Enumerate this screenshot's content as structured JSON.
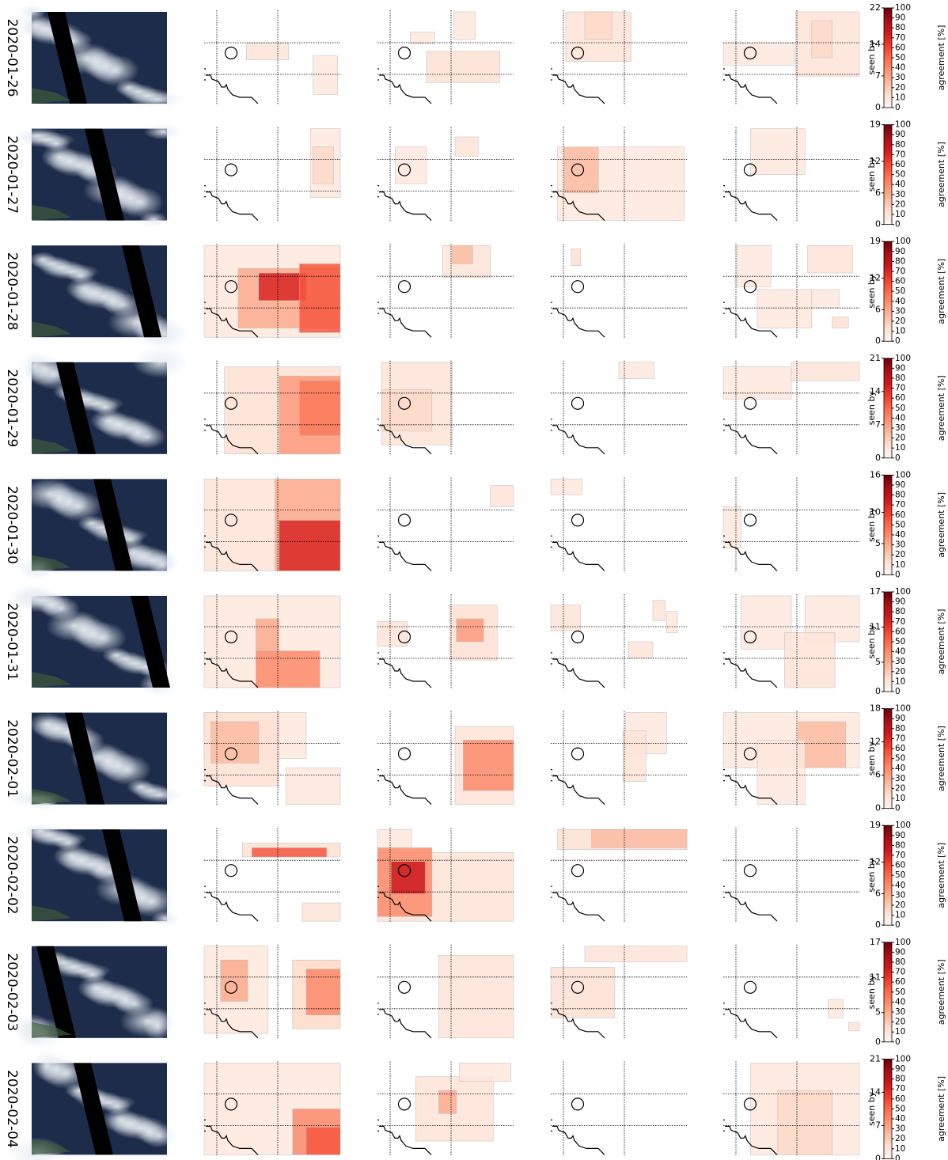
{
  "colorbar": {
    "seen_label": "seen by",
    "agreement_label": "agreement [%]",
    "agreement_lim": [
      0,
      100
    ],
    "agreement_ticks": [
      0,
      10,
      20,
      30,
      40,
      50,
      60,
      70,
      80,
      90,
      100
    ]
  },
  "rows": [
    {
      "date": "2020-01-26",
      "seen_by_lim": [
        0,
        22
      ],
      "seen_by_ticks": [
        0,
        7,
        14,
        22
      ],
      "panels": [
        [
          [
            31,
            34,
            62,
            52,
            10
          ],
          [
            80,
            48,
            98,
            90,
            8
          ]
        ],
        [
          [
            24,
            22,
            42,
            35,
            8
          ],
          [
            36,
            43,
            90,
            77,
            12
          ],
          [
            56,
            0,
            72,
            30,
            8
          ]
        ],
        [
          [
            11,
            0,
            59,
            54,
            10
          ],
          [
            25,
            0,
            45,
            30,
            15
          ]
        ],
        [
          [
            0,
            34,
            52,
            58,
            8
          ],
          [
            53,
            0,
            100,
            70,
            10
          ],
          [
            65,
            10,
            80,
            50,
            15
          ]
        ]
      ]
    },
    {
      "date": "2020-01-27",
      "seen_by_lim": [
        0,
        19
      ],
      "seen_by_ticks": [
        0,
        6,
        12,
        19
      ],
      "panels": [
        [
          [
            78,
            0,
            100,
            75,
            8
          ],
          [
            80,
            20,
            95,
            60,
            15
          ]
        ],
        [
          [
            13,
            20,
            36,
            60,
            8
          ],
          [
            57,
            9,
            74,
            30,
            10
          ]
        ],
        [
          [
            5,
            20,
            98,
            100,
            8
          ],
          [
            10,
            20,
            35,
            70,
            25
          ]
        ],
        [
          [
            20,
            0,
            60,
            50,
            8
          ]
        ]
      ]
    },
    {
      "date": "2020-01-28",
      "seen_by_lim": [
        0,
        19
      ],
      "seen_by_ticks": [
        0,
        6,
        12,
        19
      ],
      "panels": [
        [
          [
            0,
            0,
            100,
            100,
            8
          ],
          [
            25,
            25,
            100,
            90,
            30
          ],
          [
            40,
            30,
            75,
            60,
            70
          ],
          [
            70,
            20,
            100,
            95,
            55
          ]
        ],
        [
          [
            48,
            0,
            83,
            35,
            10
          ],
          [
            55,
            0,
            70,
            20,
            25
          ]
        ],
        [
          [
            15,
            4,
            22,
            22,
            12
          ]
        ],
        [
          [
            10,
            0,
            35,
            45,
            8
          ],
          [
            25,
            48,
            65,
            90,
            8
          ],
          [
            65,
            48,
            85,
            68,
            8
          ],
          [
            62,
            0,
            95,
            30,
            10
          ],
          [
            80,
            78,
            92,
            90,
            12
          ]
        ]
      ]
    },
    {
      "date": "2020-01-29",
      "seen_by_lim": [
        0,
        21
      ],
      "seen_by_ticks": [
        0,
        7,
        14,
        21
      ],
      "panels": [
        [
          [
            15,
            5,
            100,
            100,
            12
          ],
          [
            55,
            15,
            100,
            100,
            35
          ],
          [
            70,
            20,
            100,
            80,
            45
          ]
        ],
        [
          [
            3,
            0,
            55,
            90,
            10
          ],
          [
            3,
            30,
            40,
            75,
            15
          ]
        ],
        [
          [
            50,
            0,
            76,
            18,
            8
          ]
        ],
        [
          [
            0,
            5,
            50,
            40,
            8
          ],
          [
            50,
            0,
            100,
            20,
            10
          ]
        ]
      ]
    },
    {
      "date": "2020-01-30",
      "seen_by_lim": [
        0,
        16
      ],
      "seen_by_ticks": [
        0,
        5,
        10,
        16
      ],
      "panels": [
        [
          [
            0,
            0,
            100,
            100,
            10
          ],
          [
            52,
            0,
            100,
            100,
            30
          ],
          [
            55,
            45,
            100,
            100,
            70
          ]
        ],
        [
          [
            83,
            7,
            100,
            30,
            10
          ]
        ],
        [
          [
            0,
            0,
            23,
            17,
            8
          ]
        ],
        [
          [
            0,
            30,
            13,
            75,
            8
          ]
        ]
      ]
    },
    {
      "date": "2020-01-31",
      "seen_by_lim": [
        0,
        17
      ],
      "seen_by_ticks": [
        0,
        5,
        11,
        17
      ],
      "panels": [
        [
          [
            0,
            0,
            100,
            100,
            8
          ],
          [
            38,
            60,
            85,
            100,
            40
          ],
          [
            38,
            25,
            55,
            60,
            30
          ]
        ],
        [
          [
            0,
            28,
            22,
            55,
            10
          ],
          [
            53,
            10,
            88,
            70,
            12
          ],
          [
            58,
            25,
            78,
            50,
            35
          ]
        ],
        [
          [
            0,
            10,
            22,
            38,
            10
          ],
          [
            75,
            5,
            84,
            27,
            10
          ],
          [
            85,
            17,
            93,
            40,
            8
          ],
          [
            57,
            50,
            75,
            68,
            10
          ]
        ],
        [
          [
            13,
            0,
            50,
            58,
            8
          ],
          [
            60,
            0,
            100,
            50,
            8
          ],
          [
            45,
            40,
            82,
            100,
            10
          ]
        ]
      ]
    },
    {
      "date": "2020-02-01",
      "seen_by_lim": [
        0,
        18
      ],
      "seen_by_ticks": [
        0,
        6,
        12,
        18
      ],
      "panels": [
        [
          [
            0,
            0,
            75,
            50,
            8
          ],
          [
            0,
            0,
            55,
            80,
            12
          ],
          [
            5,
            10,
            40,
            55,
            25
          ],
          [
            60,
            60,
            100,
            100,
            8
          ]
        ],
        [
          [
            57,
            15,
            100,
            100,
            10
          ],
          [
            63,
            30,
            100,
            85,
            40
          ]
        ],
        [
          [
            55,
            0,
            85,
            45,
            8
          ],
          [
            53,
            20,
            70,
            75,
            10
          ]
        ],
        [
          [
            0,
            0,
            100,
            60,
            8
          ],
          [
            55,
            10,
            90,
            60,
            25
          ],
          [
            25,
            30,
            60,
            100,
            8
          ]
        ]
      ]
    },
    {
      "date": "2020-02-02",
      "seen_by_lim": [
        0,
        19
      ],
      "seen_by_ticks": [
        0,
        6,
        12,
        19
      ],
      "panels": [
        [
          [
            28,
            15,
            100,
            30,
            12
          ],
          [
            35,
            20,
            90,
            30,
            55
          ],
          [
            72,
            80,
            100,
            100,
            10
          ]
        ],
        [
          [
            0,
            25,
            100,
            100,
            10
          ],
          [
            0,
            20,
            40,
            95,
            40
          ],
          [
            10,
            35,
            35,
            70,
            75
          ],
          [
            0,
            0,
            25,
            20,
            8
          ]
        ],
        [
          [
            5,
            0,
            100,
            22,
            12
          ],
          [
            30,
            0,
            100,
            20,
            25
          ]
        ],
        []
      ]
    },
    {
      "date": "2020-02-03",
      "seen_by_lim": [
        0,
        17
      ],
      "seen_by_ticks": [
        0,
        5,
        11,
        17
      ],
      "panels": [
        [
          [
            0,
            0,
            47,
            95,
            8
          ],
          [
            12,
            15,
            32,
            60,
            30
          ],
          [
            65,
            15,
            100,
            90,
            15
          ],
          [
            75,
            25,
            100,
            75,
            40
          ]
        ],
        [
          [
            45,
            10,
            100,
            100,
            10
          ]
        ],
        [
          [
            0,
            23,
            47,
            78,
            12
          ],
          [
            25,
            0,
            100,
            17,
            10
          ]
        ],
        [
          [
            77,
            58,
            88,
            78,
            8
          ],
          [
            92,
            83,
            100,
            92,
            10
          ]
        ]
      ]
    },
    {
      "date": "2020-02-04",
      "seen_by_lim": [
        0,
        21
      ],
      "seen_by_ticks": [
        0,
        7,
        14,
        21
      ],
      "panels": [
        [
          [
            0,
            0,
            100,
            100,
            8
          ],
          [
            65,
            50,
            100,
            100,
            40
          ],
          [
            75,
            70,
            100,
            100,
            55
          ]
        ],
        [
          [
            28,
            15,
            85,
            85,
            10
          ],
          [
            45,
            30,
            58,
            55,
            30
          ],
          [
            60,
            0,
            98,
            20,
            8
          ]
        ],
        [],
        [
          [
            20,
            0,
            100,
            100,
            8
          ],
          [
            40,
            30,
            80,
            100,
            15
          ]
        ]
      ]
    }
  ]
}
